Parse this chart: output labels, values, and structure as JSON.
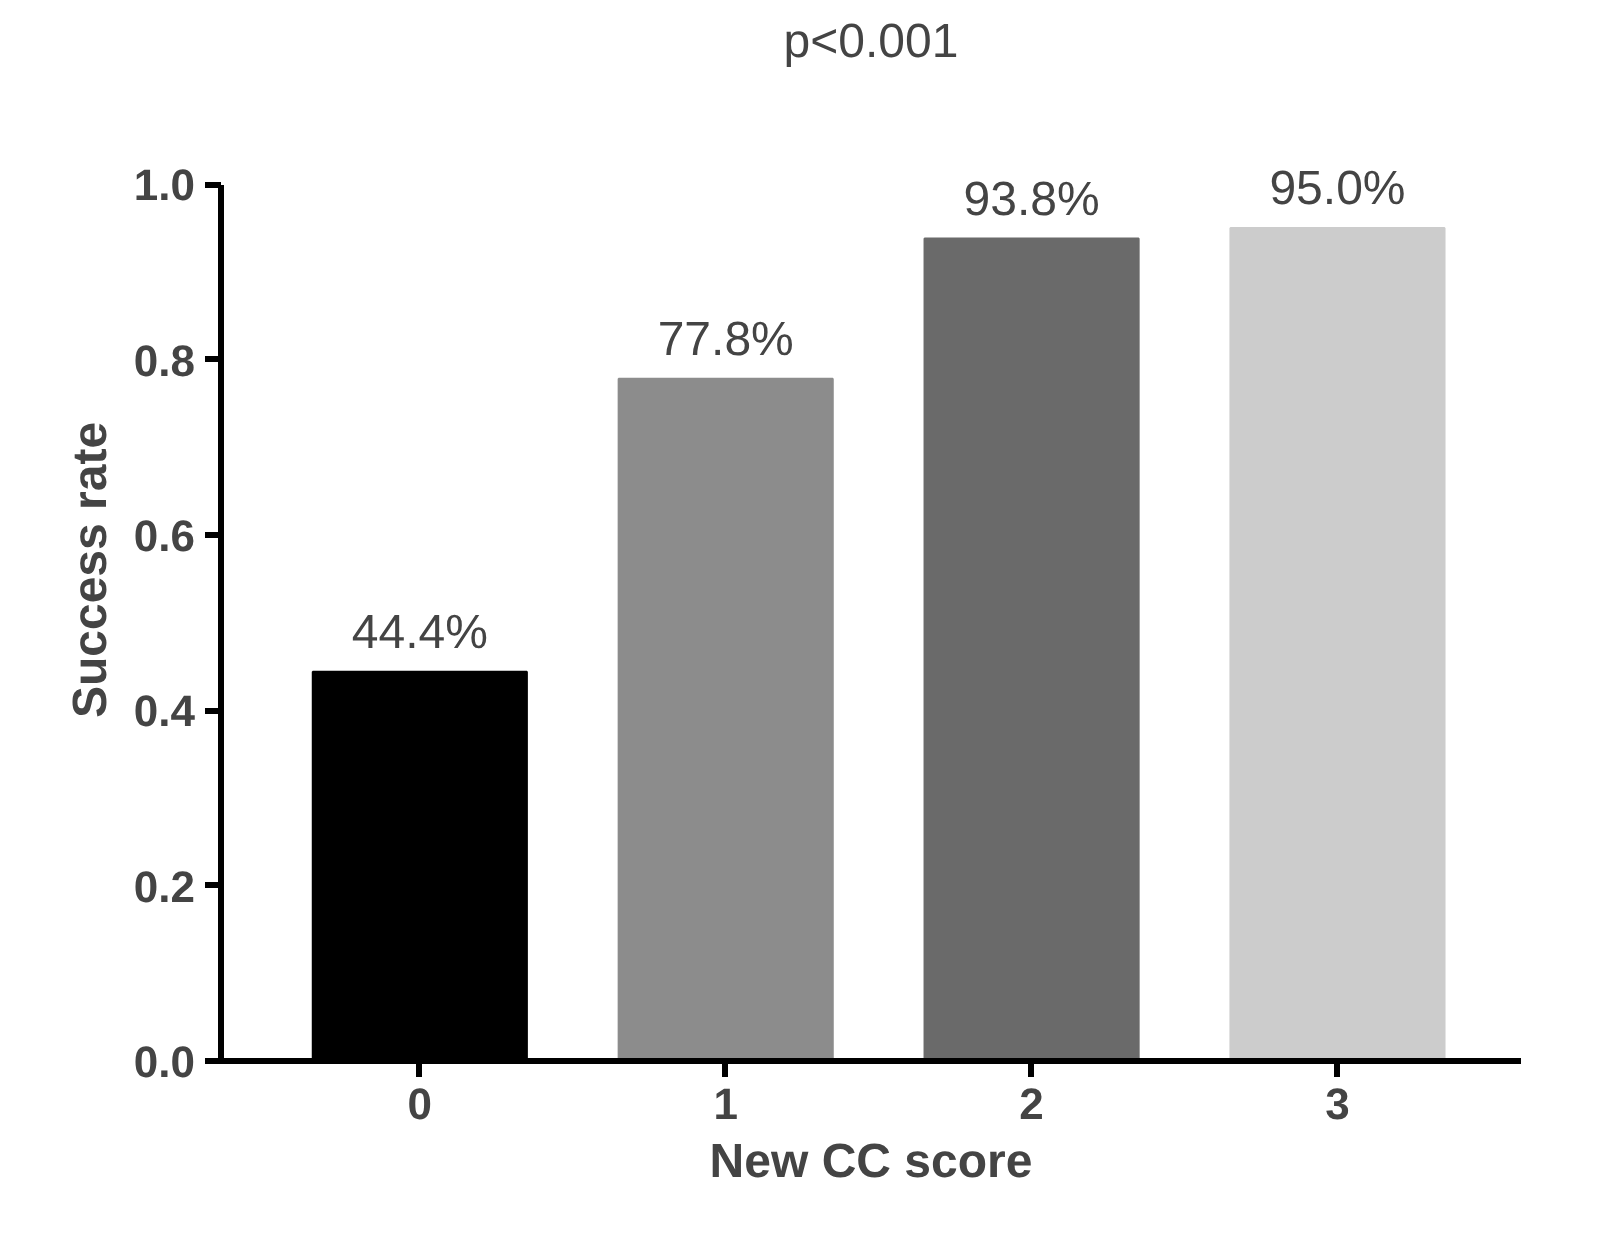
{
  "chart_data": {
    "type": "bar",
    "xlabel": "New CC score",
    "ylabel": "Success rate",
    "categories": [
      "0",
      "1",
      "2",
      "3"
    ],
    "values": [
      0.444,
      0.778,
      0.938,
      0.95
    ],
    "colors": [
      "#000000",
      "#8c8c8c",
      "#6a6a6a",
      "#cccccc"
    ],
    "value_labels": [
      "44.4%",
      "77.8%",
      "93.8%",
      "95.0%"
    ],
    "ylim": [
      0,
      1.0
    ],
    "yticks": [
      {
        "value": 0,
        "label": "0.0"
      },
      {
        "value": 0.2,
        "label": "0.2"
      },
      {
        "value": 0.4,
        "label": "0.4"
      },
      {
        "value": 0.6,
        "label": "0.6"
      },
      {
        "value": 0.8,
        "label": "0.8"
      },
      {
        "value": 1.0,
        "label": "1.0"
      }
    ],
    "annotations": [
      "p<0.001"
    ],
    "grid": false
  }
}
